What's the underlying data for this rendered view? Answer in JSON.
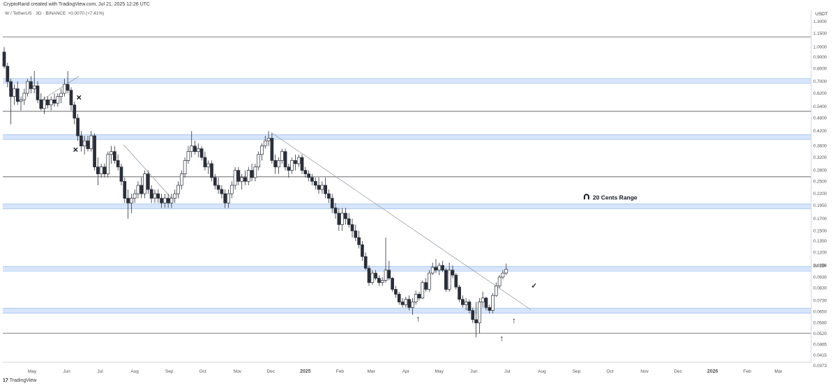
{
  "header": {
    "credit": "CryptoRand created with TradingView.com, Jul 21, 2025 12:26 UTC",
    "symbol": "W / TetherUS · 3D · BINANCE",
    "change": "+0.0070 (+7.41%)"
  },
  "footer": {
    "brand": "TradingView",
    "brand_mark": "17"
  },
  "colors": {
    "candle_up_fill": "#ffffff",
    "candle_down_fill": "#2a2e39",
    "zone": "#c9dcf9",
    "zone_line": "#8fb4ef",
    "level_line": "#555555",
    "trend_line": "#9aa0a6"
  },
  "chart_data": {
    "type": "candlestick",
    "title": "",
    "ylabel": "USDT",
    "yscale": "log",
    "ylim": [
      0.0365,
      1.42
    ],
    "x_tick_labels": [
      "May",
      "Jun",
      "Jul",
      "Aug",
      "Sep",
      "Oct",
      "Nov",
      "Dec",
      "2025",
      "Feb",
      "Mar",
      "Apr",
      "May",
      "Jun",
      "Jul",
      "Aug",
      "Sep",
      "Oct",
      "Nov",
      "Dec",
      "2026",
      "Feb",
      "Mar"
    ],
    "y_tick_labels": [
      "1.3000",
      "1.1500",
      "1.0000",
      "0.9000",
      "0.8000",
      "0.7000",
      "0.6200",
      "0.5400",
      "0.4800",
      "0.4200",
      "0.3600",
      "0.3200",
      "0.2800",
      "0.2500",
      "0.2200",
      "0.1950",
      "0.1700",
      "0.1500",
      "0.1350",
      "0.1200",
      "0.1050",
      "0.0930",
      "0.0830",
      "0.0730",
      "0.0650",
      "0.0580",
      "0.0520",
      "0.0465",
      "0.0415",
      "0.0373"
    ],
    "price_marker": "2d 12h",
    "support_resistance_zones": [
      0.705,
      0.395,
      0.193,
      0.1015,
      0.0658
    ],
    "horizontal_levels": [
      1.11,
      0.515,
      0.262,
      0.0522
    ],
    "trend_lines": [
      {
        "from": [
          "2024-05-10",
          0.58
        ],
        "to": [
          "2024-06-12",
          0.74
        ]
      },
      {
        "from": [
          "2024-07-22",
          0.365
        ],
        "to": [
          "2024-09-05",
          0.205
        ]
      },
      {
        "from": [
          "2024-12-01",
          0.415
        ],
        "to": [
          "2025-07-22",
          0.0665
        ]
      }
    ],
    "annotations": [
      {
        "label": "20 Cents Range",
        "date": "2025-09-10",
        "price": 0.212
      },
      {
        "symbol": "✕",
        "date": "2024-06-12",
        "price": 0.595
      },
      {
        "symbol": "✕",
        "date": "2024-06-09",
        "price": 0.348
      },
      {
        "symbol": "↑",
        "date": "2025-04-12",
        "price": 0.0605
      },
      {
        "symbol": "↑",
        "date": "2025-06-26",
        "price": 0.0495
      },
      {
        "symbol": "↑",
        "date": "2025-07-07",
        "price": 0.0595
      },
      {
        "symbol": "✓",
        "date": "2025-07-25",
        "price": 0.0855
      }
    ],
    "candles": [
      [
        "2024-04-06",
        0.95,
        1.0,
        0.8,
        0.82
      ],
      [
        "2024-04-09",
        0.82,
        0.85,
        0.66,
        0.7
      ],
      [
        "2024-04-12",
        0.7,
        0.72,
        0.45,
        0.6
      ],
      [
        "2024-04-15",
        0.6,
        0.68,
        0.55,
        0.65
      ],
      [
        "2024-04-18",
        0.65,
        0.7,
        0.55,
        0.57
      ],
      [
        "2024-04-21",
        0.57,
        0.6,
        0.52,
        0.58
      ],
      [
        "2024-04-24",
        0.58,
        0.65,
        0.55,
        0.62
      ],
      [
        "2024-04-27",
        0.62,
        0.72,
        0.6,
        0.7
      ],
      [
        "2024-04-30",
        0.7,
        0.74,
        0.62,
        0.65
      ],
      [
        "2024-05-03",
        0.65,
        0.78,
        0.62,
        0.67
      ],
      [
        "2024-05-06",
        0.67,
        0.7,
        0.56,
        0.58
      ],
      [
        "2024-05-09",
        0.58,
        0.62,
        0.52,
        0.53
      ],
      [
        "2024-05-12",
        0.53,
        0.6,
        0.5,
        0.58
      ],
      [
        "2024-05-15",
        0.58,
        0.6,
        0.53,
        0.55
      ],
      [
        "2024-05-18",
        0.55,
        0.6,
        0.52,
        0.58
      ],
      [
        "2024-05-21",
        0.58,
        0.62,
        0.54,
        0.56
      ],
      [
        "2024-05-24",
        0.56,
        0.62,
        0.54,
        0.6
      ],
      [
        "2024-05-27",
        0.6,
        0.65,
        0.56,
        0.62
      ],
      [
        "2024-05-30",
        0.62,
        0.72,
        0.6,
        0.68
      ],
      [
        "2024-06-02",
        0.68,
        0.78,
        0.62,
        0.64
      ],
      [
        "2024-06-05",
        0.64,
        0.66,
        0.52,
        0.55
      ],
      [
        "2024-06-08",
        0.55,
        0.57,
        0.45,
        0.48
      ],
      [
        "2024-06-11",
        0.48,
        0.5,
        0.38,
        0.4
      ],
      [
        "2024-06-14",
        0.4,
        0.42,
        0.34,
        0.36
      ],
      [
        "2024-06-17",
        0.36,
        0.4,
        0.33,
        0.38
      ],
      [
        "2024-06-20",
        0.38,
        0.4,
        0.34,
        0.35
      ],
      [
        "2024-06-23",
        0.35,
        0.42,
        0.34,
        0.4
      ],
      [
        "2024-06-26",
        0.4,
        0.41,
        0.28,
        0.29
      ],
      [
        "2024-06-29",
        0.29,
        0.32,
        0.24,
        0.27
      ],
      [
        "2024-07-02",
        0.27,
        0.3,
        0.26,
        0.29
      ],
      [
        "2024-07-05",
        0.29,
        0.3,
        0.26,
        0.27
      ],
      [
        "2024-07-08",
        0.27,
        0.34,
        0.26,
        0.33
      ],
      [
        "2024-07-11",
        0.33,
        0.36,
        0.3,
        0.34
      ],
      [
        "2024-07-14",
        0.34,
        0.36,
        0.3,
        0.31
      ],
      [
        "2024-07-17",
        0.31,
        0.33,
        0.28,
        0.29
      ],
      [
        "2024-07-20",
        0.29,
        0.3,
        0.24,
        0.25
      ],
      [
        "2024-07-23",
        0.25,
        0.26,
        0.2,
        0.21
      ],
      [
        "2024-07-26",
        0.21,
        0.23,
        0.17,
        0.2
      ],
      [
        "2024-07-29",
        0.2,
        0.22,
        0.18,
        0.21
      ],
      [
        "2024-08-01",
        0.21,
        0.23,
        0.2,
        0.22
      ],
      [
        "2024-08-04",
        0.22,
        0.25,
        0.21,
        0.24
      ],
      [
        "2024-08-07",
        0.24,
        0.26,
        0.21,
        0.22
      ],
      [
        "2024-08-10",
        0.22,
        0.28,
        0.21,
        0.27
      ],
      [
        "2024-08-13",
        0.27,
        0.28,
        0.22,
        0.23
      ],
      [
        "2024-08-16",
        0.23,
        0.24,
        0.2,
        0.21
      ],
      [
        "2024-08-19",
        0.21,
        0.23,
        0.2,
        0.22
      ],
      [
        "2024-08-22",
        0.22,
        0.23,
        0.2,
        0.21
      ],
      [
        "2024-08-25",
        0.21,
        0.22,
        0.19,
        0.2
      ],
      [
        "2024-08-28",
        0.2,
        0.22,
        0.19,
        0.21
      ],
      [
        "2024-08-31",
        0.21,
        0.22,
        0.19,
        0.2
      ],
      [
        "2024-09-03",
        0.2,
        0.22,
        0.19,
        0.21
      ],
      [
        "2024-09-06",
        0.21,
        0.23,
        0.2,
        0.22
      ],
      [
        "2024-09-09",
        0.22,
        0.25,
        0.21,
        0.24
      ],
      [
        "2024-09-12",
        0.24,
        0.28,
        0.23,
        0.27
      ],
      [
        "2024-09-15",
        0.27,
        0.32,
        0.26,
        0.31
      ],
      [
        "2024-09-18",
        0.31,
        0.36,
        0.3,
        0.34
      ],
      [
        "2024-09-21",
        0.34,
        0.42,
        0.32,
        0.36
      ],
      [
        "2024-09-24",
        0.36,
        0.38,
        0.33,
        0.34
      ],
      [
        "2024-09-27",
        0.34,
        0.37,
        0.32,
        0.35
      ],
      [
        "2024-09-30",
        0.35,
        0.36,
        0.31,
        0.32
      ],
      [
        "2024-10-03",
        0.32,
        0.34,
        0.28,
        0.29
      ],
      [
        "2024-10-06",
        0.29,
        0.31,
        0.27,
        0.3
      ],
      [
        "2024-10-09",
        0.3,
        0.31,
        0.25,
        0.26
      ],
      [
        "2024-10-12",
        0.26,
        0.27,
        0.23,
        0.24
      ],
      [
        "2024-10-15",
        0.24,
        0.26,
        0.22,
        0.23
      ],
      [
        "2024-10-18",
        0.23,
        0.24,
        0.21,
        0.22
      ],
      [
        "2024-10-21",
        0.22,
        0.23,
        0.19,
        0.2
      ],
      [
        "2024-10-24",
        0.2,
        0.23,
        0.19,
        0.22
      ],
      [
        "2024-10-27",
        0.22,
        0.25,
        0.21,
        0.24
      ],
      [
        "2024-10-30",
        0.24,
        0.29,
        0.23,
        0.28
      ],
      [
        "2024-11-02",
        0.28,
        0.29,
        0.24,
        0.25
      ],
      [
        "2024-11-05",
        0.25,
        0.27,
        0.23,
        0.26
      ],
      [
        "2024-11-08",
        0.26,
        0.28,
        0.24,
        0.25
      ],
      [
        "2024-11-11",
        0.25,
        0.29,
        0.24,
        0.28
      ],
      [
        "2024-11-14",
        0.28,
        0.3,
        0.25,
        0.26
      ],
      [
        "2024-11-17",
        0.26,
        0.3,
        0.25,
        0.29
      ],
      [
        "2024-11-20",
        0.29,
        0.34,
        0.28,
        0.33
      ],
      [
        "2024-11-23",
        0.33,
        0.37,
        0.31,
        0.36
      ],
      [
        "2024-11-26",
        0.36,
        0.4,
        0.35,
        0.38
      ],
      [
        "2024-11-29",
        0.38,
        0.42,
        0.36,
        0.39
      ],
      [
        "2024-12-02",
        0.39,
        0.41,
        0.3,
        0.31
      ],
      [
        "2024-12-05",
        0.31,
        0.33,
        0.27,
        0.29
      ],
      [
        "2024-12-08",
        0.29,
        0.32,
        0.27,
        0.31
      ],
      [
        "2024-12-11",
        0.31,
        0.35,
        0.3,
        0.34
      ],
      [
        "2024-12-14",
        0.34,
        0.35,
        0.28,
        0.29
      ],
      [
        "2024-12-17",
        0.29,
        0.3,
        0.26,
        0.28
      ],
      [
        "2024-12-20",
        0.28,
        0.32,
        0.27,
        0.31
      ],
      [
        "2024-12-23",
        0.31,
        0.33,
        0.28,
        0.3
      ],
      [
        "2024-12-26",
        0.3,
        0.33,
        0.29,
        0.32
      ],
      [
        "2024-12-29",
        0.32,
        0.33,
        0.27,
        0.28
      ],
      [
        "2025-01-01",
        0.28,
        0.29,
        0.26,
        0.27
      ],
      [
        "2025-01-04",
        0.27,
        0.28,
        0.25,
        0.26
      ],
      [
        "2025-01-07",
        0.26,
        0.27,
        0.24,
        0.25
      ],
      [
        "2025-01-10",
        0.25,
        0.26,
        0.23,
        0.24
      ],
      [
        "2025-01-13",
        0.24,
        0.26,
        0.22,
        0.23
      ],
      [
        "2025-01-16",
        0.23,
        0.25,
        0.22,
        0.24
      ],
      [
        "2025-01-19",
        0.24,
        0.26,
        0.21,
        0.22
      ],
      [
        "2025-01-22",
        0.22,
        0.23,
        0.2,
        0.21
      ],
      [
        "2025-01-25",
        0.21,
        0.22,
        0.18,
        0.19
      ],
      [
        "2025-01-28",
        0.19,
        0.2,
        0.17,
        0.18
      ],
      [
        "2025-01-31",
        0.18,
        0.19,
        0.15,
        0.16
      ],
      [
        "2025-02-03",
        0.16,
        0.19,
        0.15,
        0.18
      ],
      [
        "2025-02-06",
        0.18,
        0.19,
        0.16,
        0.17
      ],
      [
        "2025-02-09",
        0.17,
        0.18,
        0.155,
        0.16
      ],
      [
        "2025-02-12",
        0.16,
        0.17,
        0.14,
        0.15
      ],
      [
        "2025-02-15",
        0.15,
        0.16,
        0.135,
        0.14
      ],
      [
        "2025-02-18",
        0.14,
        0.15,
        0.125,
        0.13
      ],
      [
        "2025-02-21",
        0.13,
        0.135,
        0.11,
        0.115
      ],
      [
        "2025-02-24",
        0.115,
        0.12,
        0.1,
        0.102
      ],
      [
        "2025-02-27",
        0.102,
        0.105,
        0.085,
        0.088
      ],
      [
        "2025-03-02",
        0.088,
        0.1,
        0.086,
        0.097
      ],
      [
        "2025-03-05",
        0.097,
        0.1,
        0.09,
        0.092
      ],
      [
        "2025-03-08",
        0.092,
        0.095,
        0.085,
        0.088
      ],
      [
        "2025-03-11",
        0.088,
        0.093,
        0.085,
        0.09
      ],
      [
        "2025-03-14",
        0.09,
        0.14,
        0.088,
        0.1
      ],
      [
        "2025-03-17",
        0.1,
        0.11,
        0.09,
        0.092
      ],
      [
        "2025-03-20",
        0.092,
        0.093,
        0.08,
        0.082
      ],
      [
        "2025-03-23",
        0.082,
        0.085,
        0.075,
        0.078
      ],
      [
        "2025-03-26",
        0.078,
        0.08,
        0.07,
        0.072
      ],
      [
        "2025-03-29",
        0.072,
        0.075,
        0.068,
        0.07
      ],
      [
        "2025-04-01",
        0.07,
        0.076,
        0.068,
        0.074
      ],
      [
        "2025-04-04",
        0.074,
        0.077,
        0.066,
        0.068
      ],
      [
        "2025-04-07",
        0.068,
        0.075,
        0.063,
        0.072
      ],
      [
        "2025-04-10",
        0.072,
        0.081,
        0.07,
        0.078
      ],
      [
        "2025-04-13",
        0.078,
        0.08,
        0.073,
        0.075
      ],
      [
        "2025-04-16",
        0.075,
        0.09,
        0.074,
        0.088
      ],
      [
        "2025-04-19",
        0.088,
        0.092,
        0.08,
        0.082
      ],
      [
        "2025-04-22",
        0.082,
        0.1,
        0.08,
        0.097
      ],
      [
        "2025-04-25",
        0.097,
        0.108,
        0.095,
        0.103
      ],
      [
        "2025-04-28",
        0.103,
        0.112,
        0.097,
        0.1
      ],
      [
        "2025-05-01",
        0.1,
        0.108,
        0.095,
        0.105
      ],
      [
        "2025-05-04",
        0.105,
        0.11,
        0.098,
        0.1
      ],
      [
        "2025-05-07",
        0.1,
        0.102,
        0.08,
        0.082
      ],
      [
        "2025-05-10",
        0.082,
        0.108,
        0.08,
        0.1
      ],
      [
        "2025-05-13",
        0.1,
        0.105,
        0.092,
        0.095
      ],
      [
        "2025-05-16",
        0.095,
        0.097,
        0.082,
        0.084
      ],
      [
        "2025-05-19",
        0.084,
        0.086,
        0.072,
        0.074
      ],
      [
        "2025-05-22",
        0.074,
        0.077,
        0.068,
        0.07
      ],
      [
        "2025-05-25",
        0.07,
        0.075,
        0.066,
        0.072
      ],
      [
        "2025-05-28",
        0.072,
        0.074,
        0.064,
        0.066
      ],
      [
        "2025-05-31",
        0.066,
        0.068,
        0.058,
        0.06
      ],
      [
        "2025-06-03",
        0.06,
        0.072,
        0.05,
        0.058
      ],
      [
        "2025-06-06",
        0.058,
        0.075,
        0.052,
        0.072
      ],
      [
        "2025-06-09",
        0.072,
        0.08,
        0.068,
        0.075
      ],
      [
        "2025-06-12",
        0.075,
        0.076,
        0.066,
        0.068
      ],
      [
        "2025-06-15",
        0.068,
        0.07,
        0.064,
        0.066
      ],
      [
        "2025-06-18",
        0.066,
        0.079,
        0.064,
        0.077
      ],
      [
        "2025-06-21",
        0.077,
        0.088,
        0.076,
        0.085
      ],
      [
        "2025-06-24",
        0.085,
        0.095,
        0.083,
        0.093
      ],
      [
        "2025-06-27",
        0.093,
        0.1,
        0.091,
        0.097
      ],
      [
        "2025-06-30",
        0.097,
        0.107,
        0.095,
        0.101
      ]
    ]
  }
}
